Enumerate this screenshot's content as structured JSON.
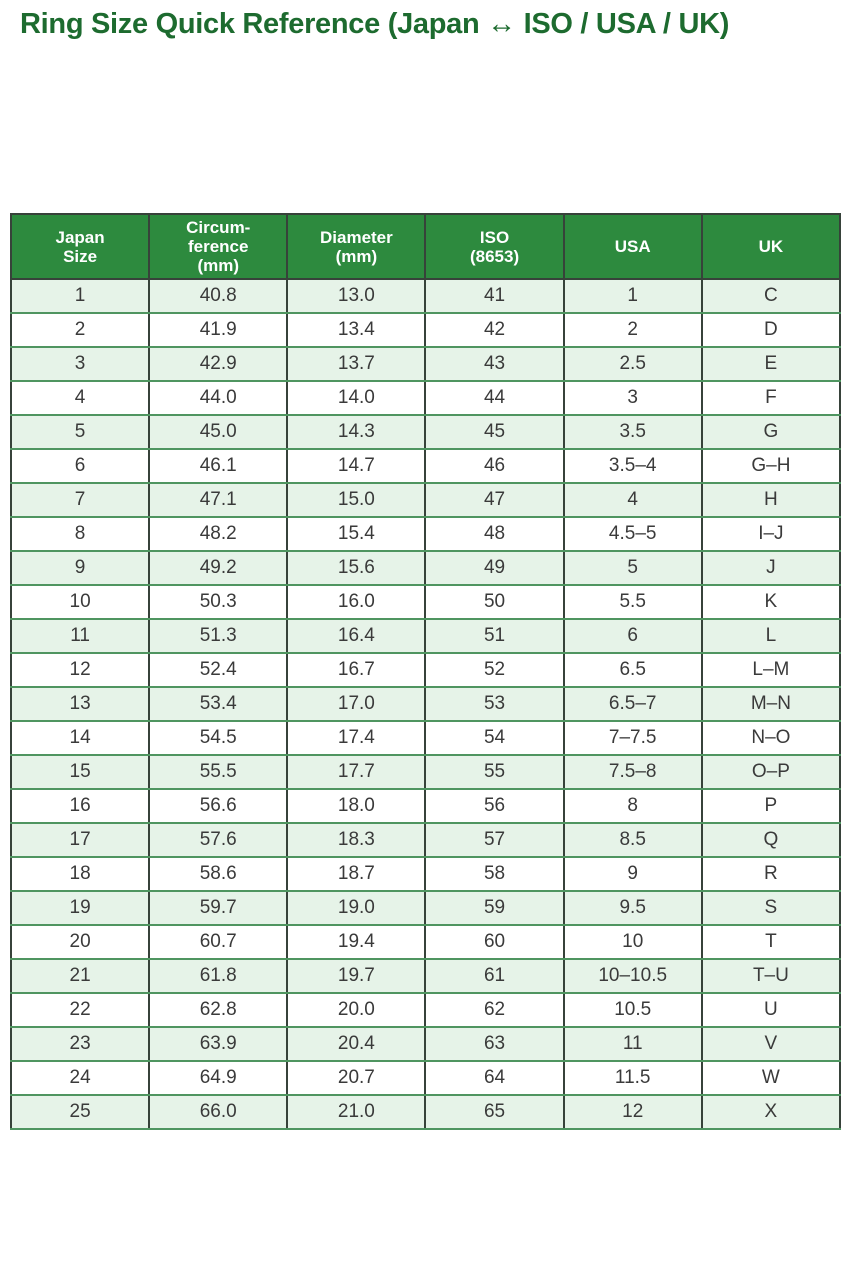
{
  "page": {
    "title": "Ring Size Quick Reference (Japan ↔ ISO / USA / UK)"
  },
  "colors": {
    "title_green": "#1d6b2f",
    "header_bg": "#2d8a3e",
    "header_text": "#ffffff",
    "row_bg": "#ffffff",
    "row_alt_bg": "#e6f3e8",
    "body_text": "#3a3a3a",
    "border_dark": "#37423a",
    "border_light": "#4f9560"
  },
  "table": {
    "headers": [
      "Japan\nSize",
      "Circum-\nference\n(mm)",
      "Diameter\n(mm)",
      "ISO\n(8653)",
      "USA",
      "UK"
    ],
    "rows": [
      [
        "1",
        "40.8",
        "13.0",
        "41",
        "1",
        "C"
      ],
      [
        "2",
        "41.9",
        "13.4",
        "42",
        "2",
        "D"
      ],
      [
        "3",
        "42.9",
        "13.7",
        "43",
        "2.5",
        "E"
      ],
      [
        "4",
        "44.0",
        "14.0",
        "44",
        "3",
        "F"
      ],
      [
        "5",
        "45.0",
        "14.3",
        "45",
        "3.5",
        "G"
      ],
      [
        "6",
        "46.1",
        "14.7",
        "46",
        "3.5–4",
        "G–H"
      ],
      [
        "7",
        "47.1",
        "15.0",
        "47",
        "4",
        "H"
      ],
      [
        "8",
        "48.2",
        "15.4",
        "48",
        "4.5–5",
        "I–J"
      ],
      [
        "9",
        "49.2",
        "15.6",
        "49",
        "5",
        "J"
      ],
      [
        "10",
        "50.3",
        "16.0",
        "50",
        "5.5",
        "K"
      ],
      [
        "11",
        "51.3",
        "16.4",
        "51",
        "6",
        "L"
      ],
      [
        "12",
        "52.4",
        "16.7",
        "52",
        "6.5",
        "L–M"
      ],
      [
        "13",
        "53.4",
        "17.0",
        "53",
        "6.5–7",
        "M–N"
      ],
      [
        "14",
        "54.5",
        "17.4",
        "54",
        "7–7.5",
        "N–O"
      ],
      [
        "15",
        "55.5",
        "17.7",
        "55",
        "7.5–8",
        "O–P"
      ],
      [
        "16",
        "56.6",
        "18.0",
        "56",
        "8",
        "P"
      ],
      [
        "17",
        "57.6",
        "18.3",
        "57",
        "8.5",
        "Q"
      ],
      [
        "18",
        "58.6",
        "18.7",
        "58",
        "9",
        "R"
      ],
      [
        "19",
        "59.7",
        "19.0",
        "59",
        "9.5",
        "S"
      ],
      [
        "20",
        "60.7",
        "19.4",
        "60",
        "10",
        "T"
      ],
      [
        "21",
        "61.8",
        "19.7",
        "61",
        "10–10.5",
        "T–U"
      ],
      [
        "22",
        "62.8",
        "20.0",
        "62",
        "10.5",
        "U"
      ],
      [
        "23",
        "63.9",
        "20.4",
        "63",
        "11",
        "V"
      ],
      [
        "24",
        "64.9",
        "20.7",
        "64",
        "11.5",
        "W"
      ],
      [
        "25",
        "66.0",
        "21.0",
        "65",
        "12",
        "X"
      ]
    ]
  }
}
